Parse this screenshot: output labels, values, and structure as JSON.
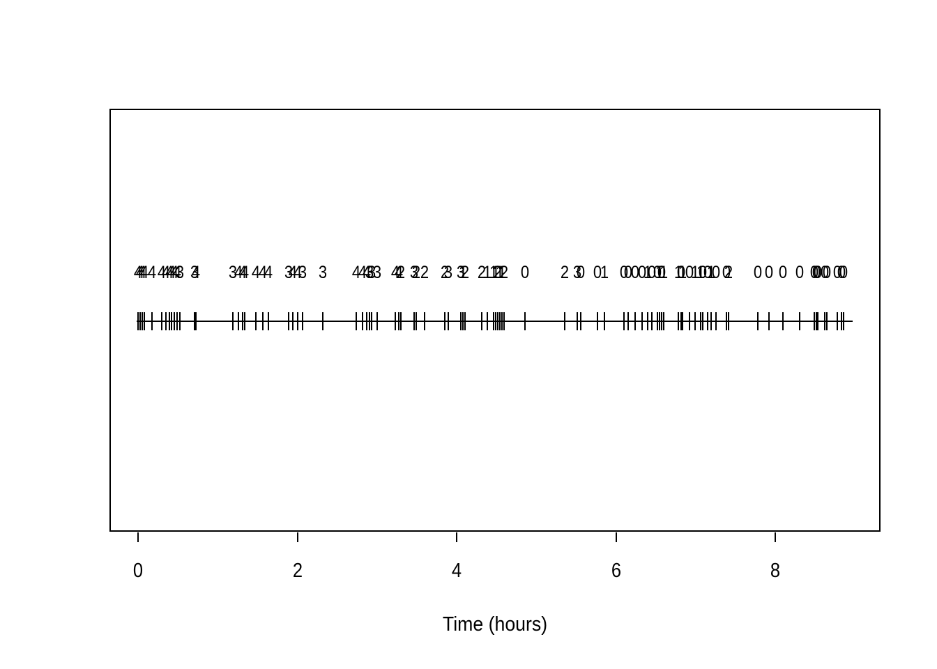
{
  "chart_data": {
    "type": "scatter",
    "subtype": "event-rug-with-numeric-marks",
    "title": "",
    "xlabel": "Time (hours)",
    "ylabel": "",
    "xlim": [
      -0.36,
      9.32
    ],
    "x_ticks": [
      0,
      2,
      4,
      6,
      8
    ],
    "x_tick_labels": [
      "0",
      "2",
      "4",
      "6",
      "8"
    ],
    "grid": false,
    "legend": "none",
    "rug_line_extent_hours": [
      -0.02,
      8.97
    ],
    "events_format": [
      "time_hours",
      "mark"
    ],
    "events": [
      [
        0.0,
        4
      ],
      [
        0.026,
        4
      ],
      [
        0.052,
        4
      ],
      [
        0.079,
        4
      ],
      [
        0.175,
        4
      ],
      [
        0.297,
        4
      ],
      [
        0.35,
        4
      ],
      [
        0.394,
        4
      ],
      [
        0.42,
        4
      ],
      [
        0.455,
        4
      ],
      [
        0.49,
        4
      ],
      [
        0.525,
        3
      ],
      [
        0.709,
        3
      ],
      [
        0.726,
        4
      ],
      [
        1.19,
        3
      ],
      [
        1.26,
        4
      ],
      [
        1.312,
        4
      ],
      [
        1.339,
        4
      ],
      [
        1.479,
        4
      ],
      [
        1.566,
        4
      ],
      [
        1.636,
        4
      ],
      [
        1.89,
        3
      ],
      [
        1.942,
        4
      ],
      [
        2.004,
        4
      ],
      [
        2.065,
        3
      ],
      [
        2.318,
        3
      ],
      [
        2.738,
        4
      ],
      [
        2.817,
        4
      ],
      [
        2.87,
        4
      ],
      [
        2.905,
        3
      ],
      [
        2.931,
        3
      ],
      [
        3.001,
        3
      ],
      [
        3.228,
        4
      ],
      [
        3.272,
        4
      ],
      [
        3.298,
        2
      ],
      [
        3.465,
        3
      ],
      [
        3.491,
        2
      ],
      [
        3.596,
        2
      ],
      [
        3.849,
        2
      ],
      [
        3.893,
        3
      ],
      [
        4.051,
        3
      ],
      [
        4.077,
        1
      ],
      [
        4.103,
        2
      ],
      [
        4.313,
        2
      ],
      [
        4.383,
        1
      ],
      [
        4.462,
        1
      ],
      [
        4.488,
        1
      ],
      [
        4.514,
        2
      ],
      [
        4.541,
        1
      ],
      [
        4.567,
        1
      ],
      [
        4.593,
        2
      ],
      [
        4.856,
        0
      ],
      [
        5.354,
        2
      ],
      [
        5.512,
        3
      ],
      [
        5.555,
        0
      ],
      [
        5.765,
        0
      ],
      [
        5.853,
        1
      ],
      [
        6.098,
        0
      ],
      [
        6.15,
        0
      ],
      [
        6.238,
        0
      ],
      [
        6.325,
        0
      ],
      [
        6.395,
        1
      ],
      [
        6.448,
        0
      ],
      [
        6.518,
        0
      ],
      [
        6.544,
        1
      ],
      [
        6.57,
        0
      ],
      [
        6.596,
        1
      ],
      [
        6.78,
        1
      ],
      [
        6.815,
        0
      ],
      [
        6.833,
        1
      ],
      [
        6.92,
        0
      ],
      [
        6.99,
        1
      ],
      [
        7.06,
        1
      ],
      [
        7.087,
        0
      ],
      [
        7.148,
        0
      ],
      [
        7.192,
        1
      ],
      [
        7.253,
        0
      ],
      [
        7.384,
        0
      ],
      [
        7.41,
        2
      ],
      [
        7.778,
        0
      ],
      [
        7.918,
        0
      ],
      [
        8.093,
        0
      ],
      [
        8.303,
        0
      ],
      [
        8.487,
        0
      ],
      [
        8.513,
        0
      ],
      [
        8.531,
        0
      ],
      [
        8.618,
        0
      ],
      [
        8.644,
        0
      ],
      [
        8.775,
        0
      ],
      [
        8.828,
        0
      ],
      [
        8.854,
        0
      ]
    ]
  }
}
